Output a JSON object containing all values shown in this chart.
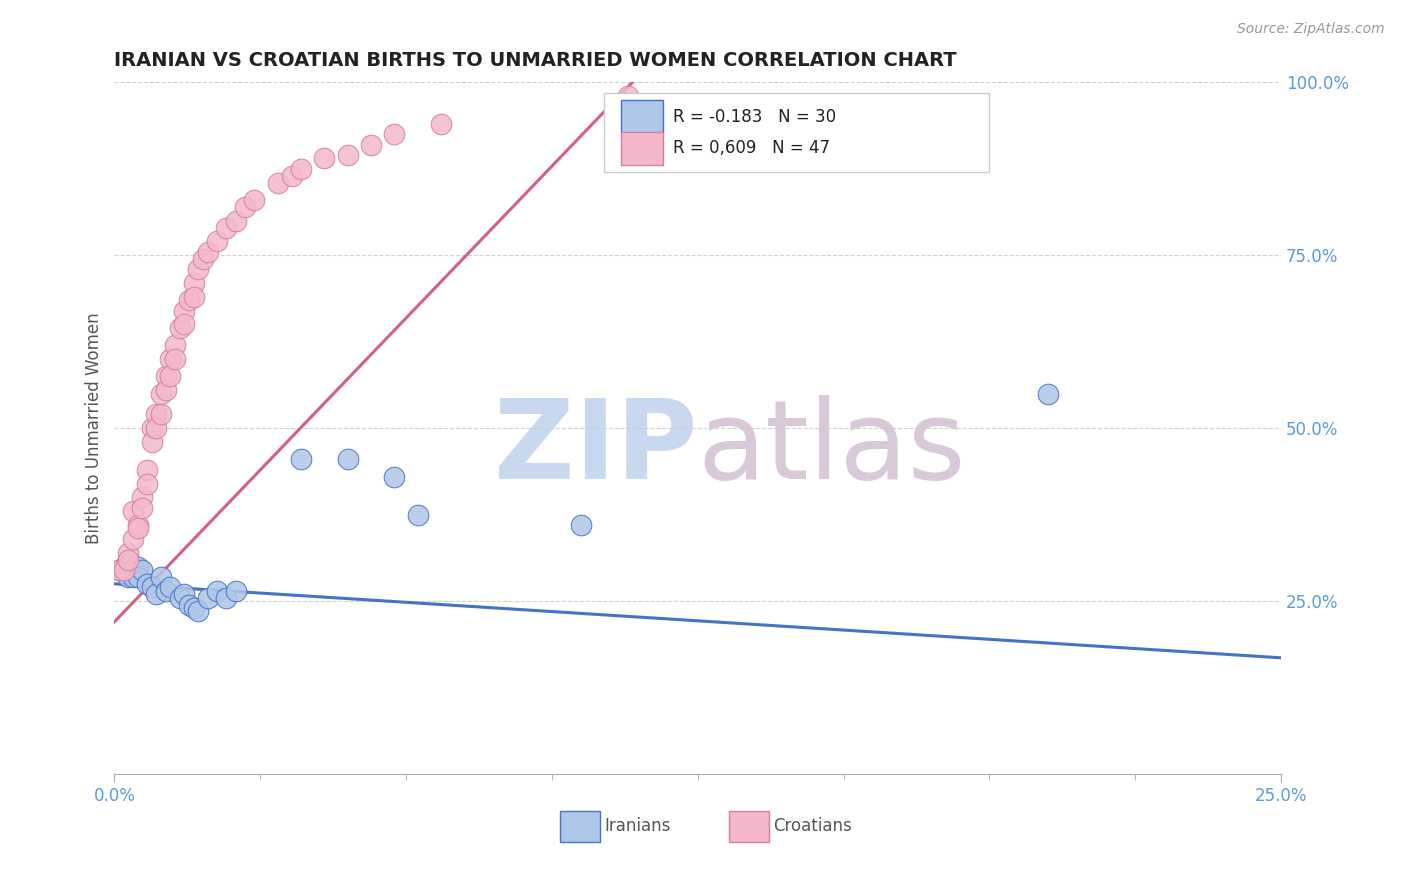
{
  "title": "IRANIAN VS CROATIAN BIRTHS TO UNMARRIED WOMEN CORRELATION CHART",
  "source": "Source: ZipAtlas.com",
  "ylabel": "Births to Unmarried Women",
  "legend_r_iranian": "R = -0.183",
  "legend_n_iranian": "N = 30",
  "legend_r_croatian": "R = 0,609",
  "legend_n_croatian": "N = 47",
  "color_iranian": "#aec6e8",
  "color_croatian": "#f4b8cc",
  "line_color_iranian": "#4472c4",
  "line_color_croatian": "#d46080",
  "xrange": [
    0,
    0.25
  ],
  "yrange": [
    0,
    1.0
  ],
  "ytick_vals": [
    0.25,
    0.5,
    0.75,
    1.0
  ],
  "ytick_labels": [
    "25.0%",
    "50.0%",
    "75.0%",
    "100.0%"
  ],
  "iranian_line": [
    0.0,
    0.25,
    0.275,
    0.168
  ],
  "croatian_line": [
    0.0,
    0.111,
    0.22,
    1.0
  ],
  "iranian_points": [
    [
      0.001,
      0.295
    ],
    [
      0.002,
      0.3
    ],
    [
      0.003,
      0.31
    ],
    [
      0.003,
      0.285
    ],
    [
      0.004,
      0.295
    ],
    [
      0.004,
      0.285
    ],
    [
      0.005,
      0.3
    ],
    [
      0.005,
      0.285
    ],
    [
      0.006,
      0.295
    ],
    [
      0.007,
      0.275
    ],
    [
      0.008,
      0.27
    ],
    [
      0.009,
      0.26
    ],
    [
      0.01,
      0.285
    ],
    [
      0.011,
      0.265
    ],
    [
      0.012,
      0.27
    ],
    [
      0.014,
      0.255
    ],
    [
      0.015,
      0.26
    ],
    [
      0.016,
      0.245
    ],
    [
      0.017,
      0.24
    ],
    [
      0.018,
      0.235
    ],
    [
      0.02,
      0.255
    ],
    [
      0.022,
      0.265
    ],
    [
      0.024,
      0.255
    ],
    [
      0.026,
      0.265
    ],
    [
      0.04,
      0.455
    ],
    [
      0.05,
      0.455
    ],
    [
      0.06,
      0.43
    ],
    [
      0.065,
      0.375
    ],
    [
      0.1,
      0.36
    ],
    [
      0.2,
      0.55
    ]
  ],
  "croatian_points": [
    [
      0.001,
      0.295
    ],
    [
      0.002,
      0.295
    ],
    [
      0.003,
      0.32
    ],
    [
      0.003,
      0.31
    ],
    [
      0.004,
      0.38
    ],
    [
      0.004,
      0.34
    ],
    [
      0.005,
      0.36
    ],
    [
      0.005,
      0.355
    ],
    [
      0.006,
      0.4
    ],
    [
      0.006,
      0.385
    ],
    [
      0.007,
      0.44
    ],
    [
      0.007,
      0.42
    ],
    [
      0.008,
      0.5
    ],
    [
      0.008,
      0.48
    ],
    [
      0.009,
      0.52
    ],
    [
      0.009,
      0.5
    ],
    [
      0.01,
      0.55
    ],
    [
      0.01,
      0.52
    ],
    [
      0.011,
      0.575
    ],
    [
      0.011,
      0.555
    ],
    [
      0.012,
      0.6
    ],
    [
      0.012,
      0.575
    ],
    [
      0.013,
      0.62
    ],
    [
      0.013,
      0.6
    ],
    [
      0.014,
      0.645
    ],
    [
      0.015,
      0.67
    ],
    [
      0.015,
      0.65
    ],
    [
      0.016,
      0.685
    ],
    [
      0.017,
      0.71
    ],
    [
      0.017,
      0.69
    ],
    [
      0.018,
      0.73
    ],
    [
      0.019,
      0.745
    ],
    [
      0.02,
      0.755
    ],
    [
      0.022,
      0.77
    ],
    [
      0.024,
      0.79
    ],
    [
      0.026,
      0.8
    ],
    [
      0.028,
      0.82
    ],
    [
      0.03,
      0.83
    ],
    [
      0.035,
      0.855
    ],
    [
      0.038,
      0.865
    ],
    [
      0.04,
      0.875
    ],
    [
      0.045,
      0.89
    ],
    [
      0.05,
      0.895
    ],
    [
      0.055,
      0.91
    ],
    [
      0.06,
      0.925
    ],
    [
      0.07,
      0.94
    ],
    [
      0.11,
      0.98
    ]
  ]
}
